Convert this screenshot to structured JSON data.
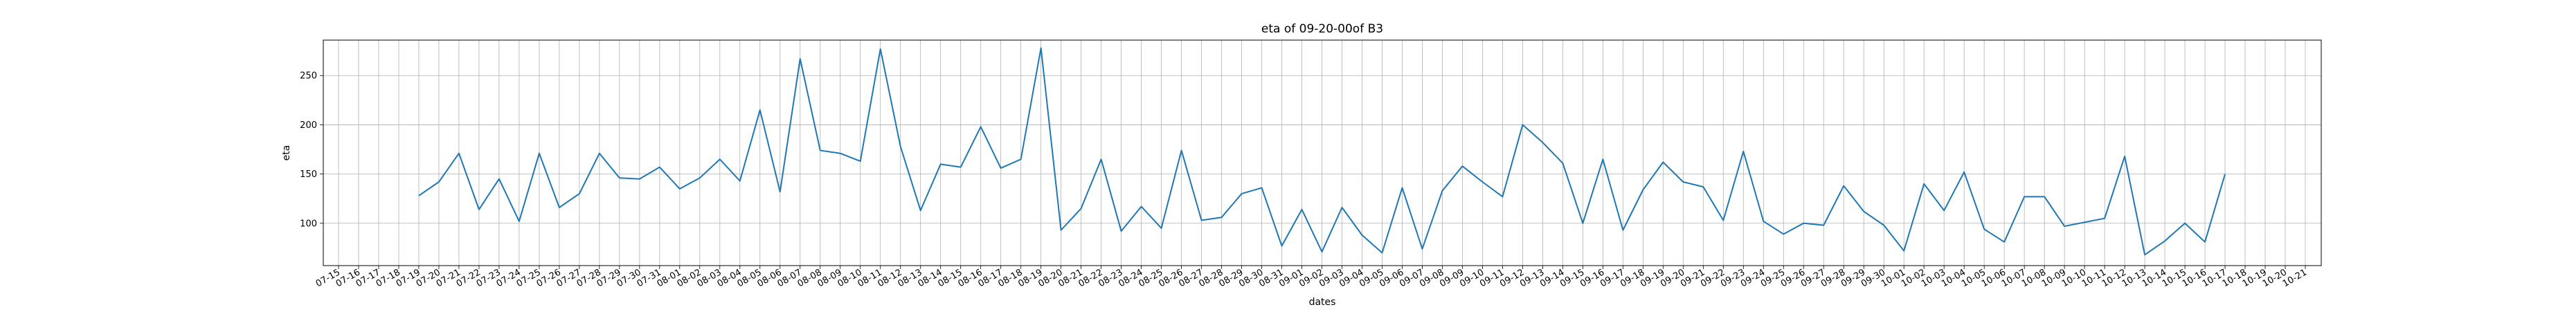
{
  "chart_data": {
    "type": "line",
    "title": "eta of 09-20-00of B3",
    "xlabel": "dates",
    "ylabel": "eta",
    "grid": true,
    "ylim": [
      57,
      286
    ],
    "y_ticks": [
      100,
      150,
      200,
      250
    ],
    "x_tick_labels": [
      "07-15",
      "07-16",
      "07-17",
      "07-18",
      "07-19",
      "07-20",
      "07-21",
      "07-22",
      "07-23",
      "07-24",
      "07-25",
      "07-26",
      "07-27",
      "07-28",
      "07-29",
      "07-30",
      "07-31",
      "08-01",
      "08-02",
      "08-03",
      "08-04",
      "08-05",
      "08-06",
      "08-07",
      "08-08",
      "08-09",
      "08-10",
      "08-11",
      "08-12",
      "08-13",
      "08-14",
      "08-15",
      "08-16",
      "08-17",
      "08-18",
      "08-19",
      "08-20",
      "08-21",
      "08-22",
      "08-23",
      "08-24",
      "08-25",
      "08-26",
      "08-27",
      "08-28",
      "08-29",
      "08-30",
      "08-31",
      "09-01",
      "09-02",
      "09-03",
      "09-04",
      "09-05",
      "09-06",
      "09-07",
      "09-08",
      "09-09",
      "09-10",
      "09-11",
      "09-12",
      "09-13",
      "09-14",
      "09-15",
      "09-16",
      "09-17",
      "09-18",
      "09-19",
      "09-20",
      "09-21",
      "09-22",
      "09-23",
      "09-24",
      "09-25",
      "09-26",
      "09-27",
      "09-28",
      "09-29",
      "09-30",
      "10-01",
      "10-02",
      "10-03",
      "10-04",
      "10-05",
      "10-06",
      "10-07",
      "10-08",
      "10-09",
      "10-10",
      "10-11",
      "10-12",
      "10-13",
      "10-14",
      "10-15",
      "10-16",
      "10-17",
      "10-18",
      "10-19",
      "10-20",
      "10-21"
    ],
    "series": [
      {
        "color": "#1f77b4",
        "x": [
          "07-19",
          "07-20",
          "07-21",
          "07-22",
          "07-23",
          "07-24",
          "07-25",
          "07-26",
          "07-27",
          "07-28",
          "07-29",
          "07-30",
          "07-31",
          "08-01",
          "08-02",
          "08-03",
          "08-04",
          "08-05",
          "08-06",
          "08-07",
          "08-08",
          "08-09",
          "08-10",
          "08-11",
          "08-12",
          "08-13",
          "08-14",
          "08-15",
          "08-16",
          "08-17",
          "08-18",
          "08-19",
          "08-20",
          "08-21",
          "08-22",
          "08-23",
          "08-24",
          "08-25",
          "08-26",
          "08-27",
          "08-28",
          "08-29",
          "08-30",
          "08-31",
          "09-01",
          "09-02",
          "09-03",
          "09-04",
          "09-05",
          "09-06",
          "09-07",
          "09-08",
          "09-09",
          "09-10",
          "09-11",
          "09-12",
          "09-13",
          "09-14",
          "09-15",
          "09-16",
          "09-17",
          "09-18",
          "09-19",
          "09-20",
          "09-21",
          "09-22",
          "09-23",
          "09-24",
          "09-25",
          "09-26",
          "09-27",
          "09-28",
          "09-29",
          "09-30",
          "10-01",
          "10-02",
          "10-03",
          "10-04",
          "10-05",
          "10-06",
          "10-07",
          "10-08",
          "10-09",
          "10-10",
          "10-11",
          "10-12",
          "10-13",
          "10-14",
          "10-15",
          "10-16",
          "10-17"
        ],
        "y": [
          128,
          142,
          171,
          114,
          145,
          102,
          171,
          116,
          130,
          171,
          146,
          145,
          157,
          135,
          146,
          165,
          143,
          215,
          132,
          267,
          174,
          171,
          163,
          277,
          178,
          113,
          160,
          157,
          198,
          156,
          165,
          278,
          93,
          115,
          165,
          92,
          117,
          95,
          174,
          103,
          106,
          130,
          136,
          77,
          114,
          71,
          116,
          88,
          70,
          136,
          74,
          133,
          158,
          142,
          127,
          200,
          182,
          161,
          100,
          165,
          93,
          134,
          162,
          142,
          137,
          103,
          173,
          102,
          89,
          100,
          98,
          138,
          112,
          98,
          72,
          140,
          113,
          152,
          94,
          81,
          127,
          127,
          97,
          101,
          105,
          168,
          68,
          82,
          100,
          81,
          150
        ]
      }
    ]
  }
}
